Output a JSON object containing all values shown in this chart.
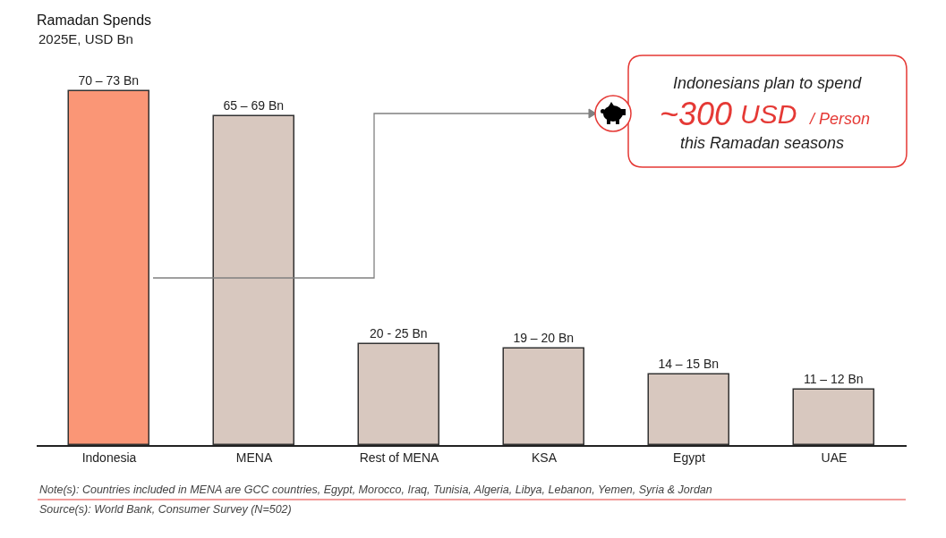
{
  "chart_data": {
    "type": "bar",
    "title": "Ramadan Spends",
    "subtitle": "2025E, USD Bn",
    "categories": [
      "Indonesia",
      "MENA",
      "Rest of MENA",
      "KSA",
      "Egypt",
      "UAE"
    ],
    "values": [
      70,
      65,
      20,
      19,
      14,
      11
    ],
    "colors": [
      "#fa9676",
      "#d8c8bf",
      "#d8c8bf",
      "#d8c8bf",
      "#d8c8bf",
      "#d8c8bf"
    ],
    "tick_labels": "x",
    "value_labels": [
      "70 – 73 Bn",
      "65 – 69 Bn",
      "20 - 25 Bn",
      "19 – 20 Bn",
      "14 – 15 Bn",
      "11 – 12 Bn"
    ],
    "annotations": [
      "Indonesians plan to spend",
      "~300",
      "USD",
      "/ Person",
      "this Ramadan seasons",
      "Note(s): Countries included in MENA are GCC countries, Egypt, Morocco, Iraq, Tunisia, Algeria, Libya, Lebanon, Yemen, Syria & Jordan",
      "Source(s): World Bank, Consumer Survey (N=502)"
    ]
  }
}
